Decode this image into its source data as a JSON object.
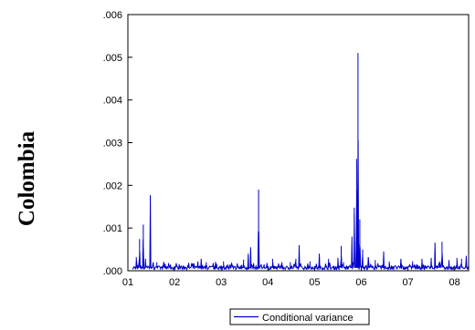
{
  "side_label": "Colombia",
  "chart_data": {
    "type": "line",
    "title": "",
    "xlabel": "",
    "ylabel": "",
    "ylim": [
      0,
      0.006
    ],
    "y_ticks": [
      {
        "value": 0.0,
        "label": ".000"
      },
      {
        "value": 0.001,
        "label": ".001"
      },
      {
        "value": 0.002,
        "label": ".002"
      },
      {
        "value": 0.003,
        "label": ".003"
      },
      {
        "value": 0.004,
        "label": ".004"
      },
      {
        "value": 0.005,
        "label": ".005"
      },
      {
        "value": 0.006,
        "label": ".006"
      }
    ],
    "xlim": [
      2001.0,
      2008.3
    ],
    "x_ticks": [
      {
        "value": 2001,
        "label": "01"
      },
      {
        "value": 2002,
        "label": "02"
      },
      {
        "value": 2003,
        "label": "03"
      },
      {
        "value": 2004,
        "label": "04"
      },
      {
        "value": 2005,
        "label": "05"
      },
      {
        "value": 2006,
        "label": "06"
      },
      {
        "value": 2007,
        "label": "07"
      },
      {
        "value": 2008,
        "label": "08"
      }
    ],
    "grid": false,
    "legend_position": "bottom-center",
    "series": [
      {
        "name": "Conditional variance",
        "color": "#0000cc",
        "baseline": 7e-05,
        "spikes": [
          [
            2001.18,
            0.00032
          ],
          [
            2001.25,
            0.00074
          ],
          [
            2001.33,
            0.00108
          ],
          [
            2001.38,
            0.00028
          ],
          [
            2001.48,
            0.00177
          ],
          [
            2001.62,
            0.0002
          ],
          [
            2001.8,
            0.00016
          ],
          [
            2002.1,
            0.00015
          ],
          [
            2002.3,
            0.00018
          ],
          [
            2002.5,
            0.00022
          ],
          [
            2002.57,
            0.00028
          ],
          [
            2002.68,
            0.0002
          ],
          [
            2002.9,
            0.00016
          ],
          [
            2003.05,
            0.00022
          ],
          [
            2003.2,
            0.00013
          ],
          [
            2003.48,
            0.00026
          ],
          [
            2003.58,
            0.0004
          ],
          [
            2003.63,
            0.00055
          ],
          [
            2003.8,
            0.0019
          ],
          [
            2003.92,
            0.00015
          ],
          [
            2004.1,
            0.00028
          ],
          [
            2004.3,
            0.0002
          ],
          [
            2004.48,
            0.0002
          ],
          [
            2004.6,
            0.00028
          ],
          [
            2004.67,
            0.0006
          ],
          [
            2004.9,
            0.00022
          ],
          [
            2005.1,
            0.0004
          ],
          [
            2005.3,
            0.00028
          ],
          [
            2005.5,
            0.0003
          ],
          [
            2005.57,
            0.00058
          ],
          [
            2005.62,
            0.0002
          ],
          [
            2005.8,
            0.0008
          ],
          [
            2005.85,
            0.00148
          ],
          [
            2005.9,
            0.00262
          ],
          [
            2005.93,
            0.0051
          ],
          [
            2005.97,
            0.0012
          ],
          [
            2006.03,
            0.0005
          ],
          [
            2006.15,
            0.00032
          ],
          [
            2006.3,
            0.00025
          ],
          [
            2006.48,
            0.00045
          ],
          [
            2006.6,
            0.00022
          ],
          [
            2006.85,
            0.00028
          ],
          [
            2007.1,
            0.00022
          ],
          [
            2007.3,
            0.00028
          ],
          [
            2007.5,
            0.0003
          ],
          [
            2007.58,
            0.00066
          ],
          [
            2007.68,
            0.00022
          ],
          [
            2007.73,
            0.00068
          ],
          [
            2007.88,
            0.00025
          ],
          [
            2008.05,
            0.0003
          ],
          [
            2008.15,
            0.00028
          ],
          [
            2008.25,
            0.00035
          ]
        ]
      }
    ]
  }
}
